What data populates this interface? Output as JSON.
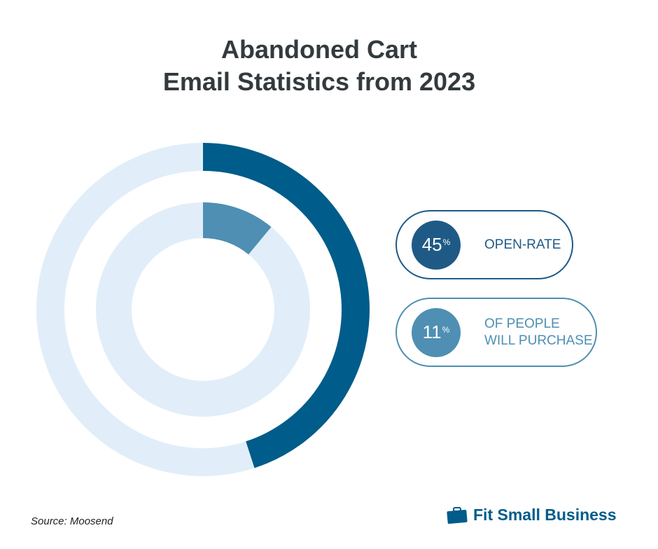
{
  "title_line1": "Abandoned Cart",
  "title_line2": "Email Statistics from 2023",
  "chart_data": {
    "type": "pie",
    "title": "Abandoned Cart Email Statistics from 2023",
    "series": [
      {
        "name": "OPEN-RATE",
        "value": 45,
        "unit": "%",
        "color": "#005c8a",
        "track": "#e1eef9"
      },
      {
        "name": "OF PEOPLE WILL PURCHASE",
        "value": 11,
        "unit": "%",
        "color": "#4e8fb3",
        "track": "#e1eef9"
      }
    ]
  },
  "legend": [
    {
      "value": "45",
      "pct": "%",
      "label_lines": [
        "OPEN-RATE"
      ],
      "color": "#1f5a86"
    },
    {
      "value": "11",
      "pct": "%",
      "label_lines": [
        "OF PEOPLE",
        "WILL PURCHASE"
      ],
      "color": "#4e8fb3"
    }
  ],
  "source": "Source: Moosend",
  "brand": "Fit Small Business"
}
